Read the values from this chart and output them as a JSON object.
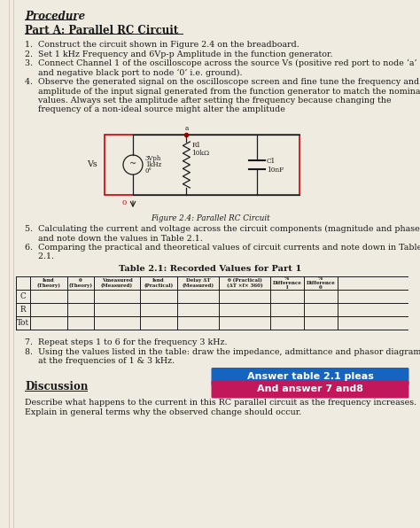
{
  "title1": "Procedure",
  "title2": "Part A: Parallel RC Circuit",
  "step1": "1.  Construct the circuit shown in Figure 2.4 on the breadboard.",
  "step2": "2.  Set 1 kHz Frequency and 6Vp-p Amplitude in the function generator.",
  "step3a": "3.  Connect Channel 1 of the oscilloscope across the source Vs (positive red port to node ‘a’",
  "step3b": "     and negative black port to node ‘0’ i.e. ground).",
  "step4a": "4.  Observe the generated signal on the oscilloscope screen and fine tune the frequency and",
  "step4b": "     amplitude of the input signal generated from the function generator to match the nominal",
  "step4c": "     values. Always set the amplitude after setting the frequency because changing the",
  "step4d": "     frequency of a non-ideal source might alter the amplitude",
  "fig_caption": "Figure 2.4: Parallel RC Circuit",
  "step5a": "5.  Calculating the current and voltage across the circuit components (magnitude and phase)",
  "step5b": "     and note down the values in Table 2.1.",
  "step6a": "6.  Comparing the practical and theoretical values of circuit currents and note down in Table",
  "step6b": "     2.1.",
  "table_title": "Table 2.1: Recorded Values for Part 1",
  "col0": "",
  "col1": "Isnd\n(Theory)",
  "col2": "θ\n(Theory)",
  "col3": "Vmeasured\n(Measured)",
  "col4": "Isnd\n(Practical)",
  "col5": "Delay ΔT\n(Measured)",
  "col6": "θ (Practical)\n(ΔT ×f× 360)",
  "col7": "%\nDifference\nI",
  "col8": "%\nDifference\nθ",
  "row_c": "C",
  "row_r": "R",
  "row_tot": "Tot",
  "step7": "7.  Repeat steps 1 to 6 for the frequency 3 kHz.",
  "step8a": "8.  Using the values listed in the table: draw the impedance, admittance and phasor diagrams",
  "step8b": "     at the frequencies of 1 & 3 kHz.",
  "highlight1_text": "Answer table 2.1 pleas",
  "highlight1_color": "#1565C0",
  "highlight2_text": "And answer 7 and8",
  "highlight2_color": "#C2185B",
  "discussion_title": "Discussion",
  "disc1": "Describe what happens to the current in this RC parallel circuit as the frequency increases.",
  "disc2": "Explain in general terms why the observed change should occur.",
  "bg_color": "#f0ebe0",
  "text_color": "#1a1a1a",
  "circuit_box_color": "#cc0000",
  "margin_line_color": "#d4a0a0",
  "fs": 6.8,
  "fs_title": 8.5,
  "fs_small": 5.0
}
